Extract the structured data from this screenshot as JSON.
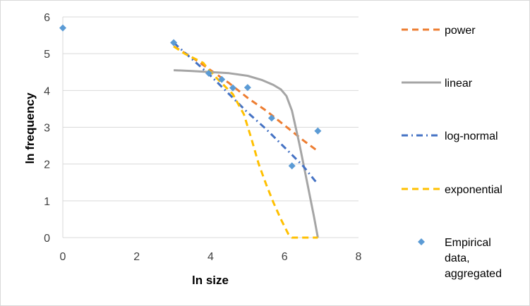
{
  "chart_data": {
    "type": "scatter",
    "title": "",
    "xlabel": "ln size",
    "ylabel": "ln frequency",
    "xlim": [
      0,
      8
    ],
    "ylim": [
      0,
      6
    ],
    "x_ticks": [
      0,
      2,
      4,
      6,
      8
    ],
    "y_ticks": [
      0,
      1,
      2,
      3,
      4,
      5,
      6
    ],
    "grid": "horizontal",
    "legend_position": "right",
    "series": [
      {
        "name": "power",
        "kind": "line",
        "style": "dashed",
        "color": "#ed7d31",
        "x": [
          3.0,
          3.5,
          4.0,
          4.5,
          5.0,
          5.5,
          6.0,
          6.5,
          6.9
        ],
        "y": [
          5.2,
          4.9,
          4.55,
          4.2,
          3.8,
          3.45,
          3.05,
          2.65,
          2.35
        ]
      },
      {
        "name": "linear",
        "kind": "line",
        "style": "solid",
        "color": "#a5a5a5",
        "x": [
          3.0,
          3.5,
          4.0,
          4.5,
          5.0,
          5.4,
          5.7,
          5.9,
          6.05,
          6.2,
          6.4,
          6.6,
          6.8,
          6.9
        ],
        "y": [
          4.55,
          4.53,
          4.5,
          4.47,
          4.4,
          4.28,
          4.15,
          4.03,
          3.85,
          3.45,
          2.55,
          1.55,
          0.55,
          0.0
        ]
      },
      {
        "name": "log-normal",
        "kind": "line",
        "style": "dash-dot",
        "color": "#4472c4",
        "x": [
          3.0,
          3.5,
          4.0,
          4.5,
          5.0,
          5.5,
          6.0,
          6.5,
          6.9
        ],
        "y": [
          5.3,
          4.85,
          4.4,
          3.9,
          3.4,
          2.95,
          2.45,
          1.95,
          1.45
        ]
      },
      {
        "name": "exponential",
        "kind": "line",
        "style": "dashed",
        "color": "#ffc000",
        "x": [
          3.0,
          3.3,
          3.6,
          3.8,
          4.0,
          4.3,
          4.6,
          4.9,
          5.1,
          5.3,
          5.5,
          5.7,
          5.9,
          6.1,
          6.2,
          6.5,
          6.9
        ],
        "y": [
          5.2,
          5.0,
          4.85,
          4.75,
          4.5,
          4.2,
          3.9,
          3.35,
          2.7,
          2.0,
          1.45,
          0.95,
          0.5,
          0.1,
          0.0,
          0.0,
          0.0
        ]
      },
      {
        "name": "Empirical data, aggregated",
        "kind": "marker",
        "marker": "diamond",
        "color": "#5b9bd5",
        "x": [
          0.0,
          3.0,
          3.95,
          4.3,
          4.6,
          5.0,
          5.65,
          6.2,
          6.9
        ],
        "y": [
          5.7,
          5.3,
          4.47,
          4.3,
          4.07,
          4.08,
          3.25,
          1.95,
          2.9
        ]
      }
    ]
  },
  "legend": [
    {
      "label": "power"
    },
    {
      "label": "linear"
    },
    {
      "label": "log-normal"
    },
    {
      "label": "exponential"
    },
    {
      "label_lines": [
        "Empirical",
        "data,",
        "aggregated"
      ]
    }
  ]
}
